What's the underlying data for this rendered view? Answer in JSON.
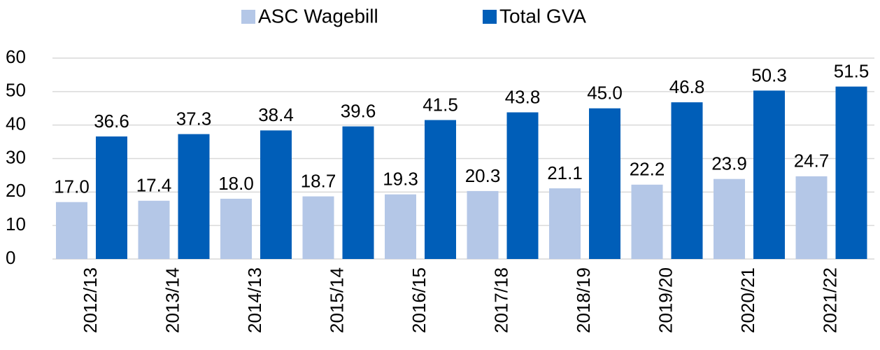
{
  "chart_data": {
    "type": "bar",
    "categories": [
      "2012/13",
      "2013/14",
      "2014/13",
      "2015/14",
      "2016/15",
      "2017/18",
      "2018/19",
      "2019/20",
      "2020/21",
      "2021/22"
    ],
    "series": [
      {
        "name": "ASC Wagebill",
        "color": "#b4c7e7",
        "values": [
          17,
          17.4,
          18,
          18.7,
          19.3,
          20.3,
          21.1,
          22.2,
          23.9,
          24.7
        ],
        "value_labels": [
          "17.0",
          "17.4",
          "18.0",
          "18.7",
          "19.3",
          "20.3",
          "21.1",
          "22.2",
          "23.9",
          "24.7"
        ]
      },
      {
        "name": "Total GVA",
        "color": "#005eb8",
        "values": [
          36.6,
          37.3,
          38.4,
          39.6,
          41.5,
          43.8,
          45,
          46.8,
          50.3,
          51.5
        ],
        "value_labels": [
          "36.6",
          "37.3",
          "38.4",
          "39.6",
          "41.5",
          "43.8",
          "45.0",
          "46.8",
          "50.3",
          "51.5"
        ]
      }
    ],
    "ylim": [
      0,
      60
    ],
    "yticks": [
      0,
      10,
      20,
      30,
      40,
      50,
      60
    ],
    "grid": true,
    "legend": "top"
  }
}
